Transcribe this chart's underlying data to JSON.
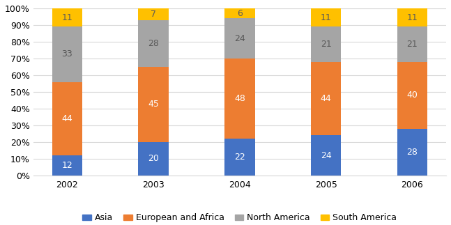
{
  "years": [
    "2002",
    "2003",
    "2004",
    "2005",
    "2006"
  ],
  "asia": [
    12,
    20,
    22,
    24,
    28
  ],
  "european_africa": [
    44,
    45,
    48,
    44,
    40
  ],
  "north_america": [
    33,
    28,
    24,
    21,
    21
  ],
  "south_america": [
    11,
    7,
    6,
    11,
    11
  ],
  "colors": {
    "asia": "#4472c4",
    "european_africa": "#ed7d31",
    "north_america": "#a5a5a5",
    "south_america": "#ffc000"
  },
  "legend_labels": [
    "Asia",
    "European and Africa",
    "North America",
    "South America"
  ],
  "bar_width": 0.35,
  "ylim": [
    0,
    100
  ],
  "yticks": [
    0,
    10,
    20,
    30,
    40,
    50,
    60,
    70,
    80,
    90,
    100
  ],
  "ytick_labels": [
    "0%",
    "10%",
    "20%",
    "30%",
    "40%",
    "50%",
    "60%",
    "70%",
    "80%",
    "90%",
    "100%"
  ],
  "background_color": "#ffffff",
  "grid_color": "#d9d9d9",
  "label_fontsize": 9,
  "legend_fontsize": 9,
  "tick_fontsize": 9,
  "text_color_light": "#595959",
  "text_color_dark": "#ffffff"
}
